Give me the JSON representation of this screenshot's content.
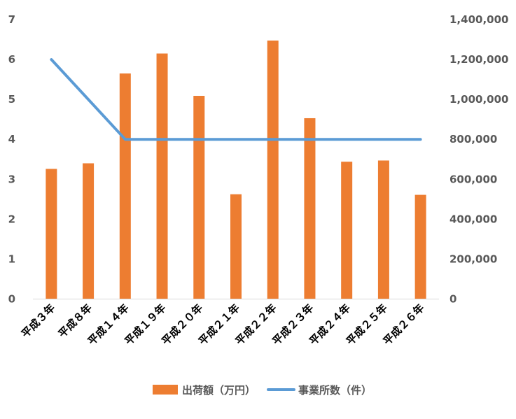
{
  "chart_data": {
    "type": "bar",
    "categories": [
      "平成３年",
      "平成８年",
      "平成１４年",
      "平成１９年",
      "平成２０年",
      "平成２１年",
      "平成２２年",
      "平成２３年",
      "平成２４年",
      "平成２５年",
      "平成２６年"
    ],
    "series": [
      {
        "name": "出荷額（万円）",
        "type": "bar",
        "axis": "right",
        "color": "#ED7D31",
        "values": [
          652000,
          680000,
          1130000,
          1230000,
          1018000,
          525000,
          1295000,
          906000,
          688000,
          694000,
          522000
        ]
      },
      {
        "name": "事業所数（件）",
        "type": "line",
        "axis": "left",
        "color": "#5B9BD5",
        "values": [
          6,
          5,
          4,
          4,
          4,
          4,
          4,
          4,
          4,
          4,
          4
        ]
      }
    ],
    "left_axis": {
      "min": 0,
      "max": 7,
      "step": 1,
      "ticks": [
        "0",
        "1",
        "2",
        "3",
        "4",
        "5",
        "6",
        "7"
      ]
    },
    "right_axis": {
      "min": 0,
      "max": 1400000,
      "step": 200000,
      "ticks": [
        "0",
        "200,000",
        "400,000",
        "600,000",
        "800,000",
        "1,000,000",
        "1,200,000",
        "1,400,000"
      ]
    },
    "title": "",
    "xlabel": "",
    "ylabel": "",
    "grid": false,
    "legend_position": "bottom"
  }
}
